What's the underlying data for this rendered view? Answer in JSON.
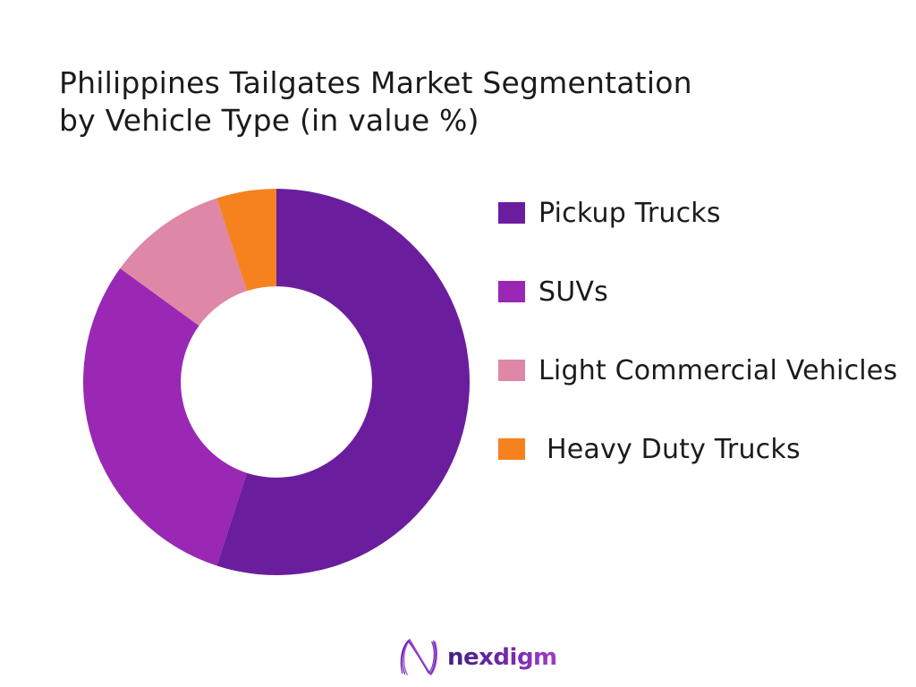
{
  "page": {
    "background_color": "#ffffff"
  },
  "title": {
    "line1": "Philippines Tailgates Market Segmentation",
    "line2": "by Vehicle Type (in value %)",
    "color": "#1b1b1b"
  },
  "chart_data": {
    "type": "pie",
    "subtype": "donut",
    "title": "Philippines Tailgates Market Segmentation by Vehicle Type (in value %)",
    "categories": [
      "Pickup Trucks",
      "SUVs",
      "Light Commercial Vehicles",
      "Heavy Duty Trucks"
    ],
    "values": [
      55,
      30,
      10,
      5
    ],
    "unit": "%",
    "colors": [
      "#6A1E9E",
      "#9A28B5",
      "#DE87A6",
      "#F5821F"
    ],
    "start_angle_deg": 0,
    "direction": "clockwise",
    "inner_radius_ratio": 0.495,
    "legend_position": "right",
    "data_labels": false
  },
  "legend": {
    "swatch_shape": "square"
  },
  "logo": {
    "text": "nexdigm",
    "icon": "nexdigm-n-swirl-icon",
    "gradient_from": "#43207d",
    "gradient_mid": "#7229ae",
    "gradient_to": "#a43bc8"
  }
}
